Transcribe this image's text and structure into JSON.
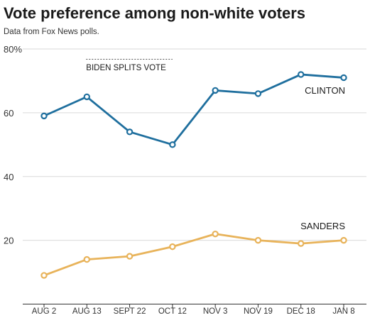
{
  "title": "Vote preference among non-white voters",
  "subtitle": "Data from Fox News polls.",
  "chart_data": {
    "type": "line",
    "title": "Vote preference among non-white voters",
    "subtitle": "Data from Fox News polls.",
    "categories": [
      "AUG 2",
      "AUG 13",
      "SEPT 22",
      "OCT 12",
      "NOV 3",
      "NOV 19",
      "DEC 18",
      "JAN 8"
    ],
    "y_ticks": [
      "80%",
      "60",
      "40",
      "20"
    ],
    "ylim": [
      0,
      80
    ],
    "grid": true,
    "annotation": {
      "text": "BIDEN SPLITS VOTE",
      "from_category": "AUG 13",
      "to_category": "OCT 12"
    },
    "series": [
      {
        "name": "CLINTON",
        "color": "#1f6f9e",
        "values": [
          59,
          65,
          54,
          50,
          67,
          66,
          72,
          71
        ]
      },
      {
        "name": "SANDERS",
        "color": "#e8b35a",
        "values": [
          9,
          14,
          15,
          18,
          22,
          20,
          19,
          20
        ]
      }
    ]
  }
}
